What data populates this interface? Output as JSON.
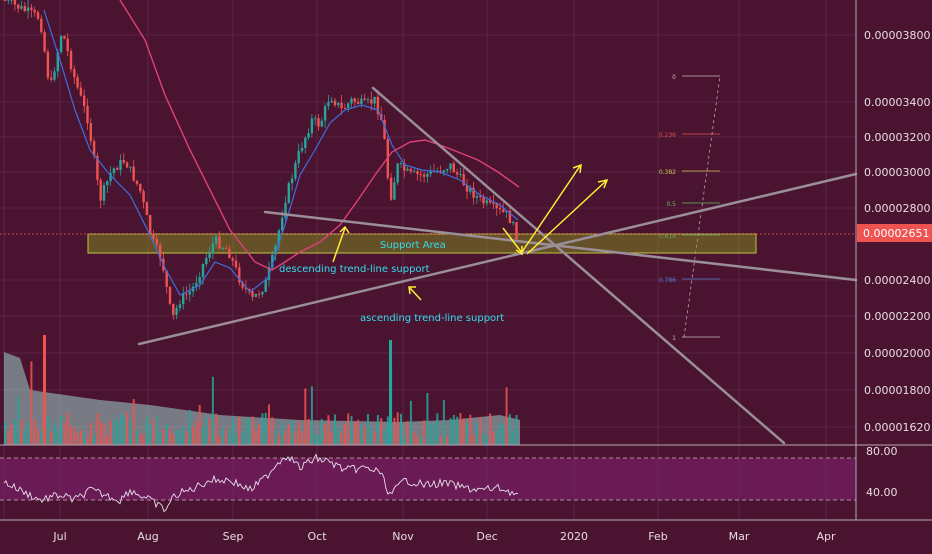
{
  "chart_data": {
    "type": "candlestick",
    "title": "",
    "price_axis": {
      "ticks": [
        "0.00003800",
        "0.00003400",
        "0.00003200",
        "0.00003000",
        "0.00002800",
        "0.00002400",
        "0.00002200",
        "0.00002000",
        "0.00001800",
        "0.00001620"
      ],
      "tick_values": [
        3.8e-05,
        3.4e-05,
        3.2e-05,
        3e-05,
        2.8e-05,
        2.4e-05,
        2.2e-05,
        2e-05,
        1.8e-05,
        1.62e-05
      ],
      "current_price": "0.00002651"
    },
    "rsi_axis": {
      "ticks": [
        "80.00",
        "40.00"
      ],
      "tick_values": [
        80,
        40
      ],
      "upper_band": 70,
      "lower_band": 30
    },
    "time_axis": {
      "labels": [
        "Jul",
        "Aug",
        "Sep",
        "Oct",
        "Nov",
        "Dec",
        "2020",
        "Feb",
        "Mar",
        "Apr"
      ]
    },
    "fib_levels": [
      {
        "label": "0",
        "color": "#c8b4c0"
      },
      {
        "label": "0.236",
        "color": "#e05050"
      },
      {
        "label": "0.382",
        "color": "#c8c850"
      },
      {
        "label": "0.5",
        "color": "#60c060"
      },
      {
        "label": "0.618",
        "color": "#40a8a0"
      },
      {
        "label": "0.786",
        "color": "#5080d0"
      },
      {
        "label": "1",
        "color": "#c8b4c0"
      }
    ],
    "annotations": {
      "support_area": "Support Area",
      "descending": "descending trend-line support",
      "ascending": "ascending trend-line support"
    },
    "colors": {
      "bull": "#26a69a",
      "bear": "#ef5350",
      "ma_fast": "#3b6fe0",
      "ma_slow": "#e0407a",
      "arrow": "#ffee33",
      "label": "#33ddee",
      "zone": "#8a9a20"
    }
  }
}
